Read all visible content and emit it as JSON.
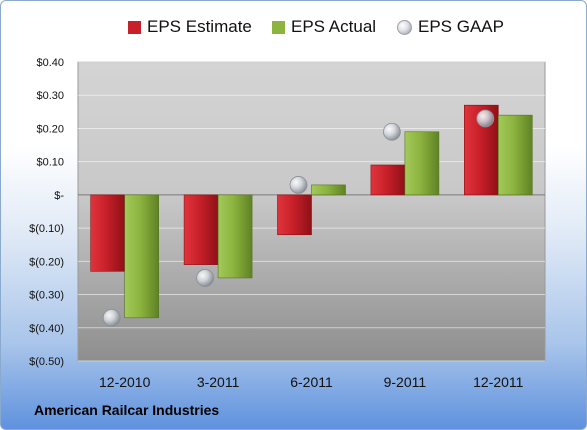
{
  "company_label": "American Railcar Industries",
  "chart_data": {
    "type": "bar",
    "categories": [
      "12-2010",
      "3-2011",
      "6-2011",
      "9-2011",
      "12-2011"
    ],
    "series": [
      {
        "name": "EPS Estimate",
        "kind": "bar",
        "color": "#c8202a",
        "values": [
          -0.23,
          -0.21,
          -0.12,
          0.09,
          0.27
        ]
      },
      {
        "name": "EPS Actual",
        "kind": "bar",
        "color": "#8cb43f",
        "values": [
          -0.37,
          -0.25,
          0.03,
          0.19,
          0.24
        ]
      },
      {
        "name": "EPS GAAP",
        "kind": "marker",
        "color": "#c9ccd1",
        "values": [
          -0.37,
          -0.25,
          0.03,
          0.19,
          0.23
        ]
      }
    ],
    "ylim": [
      -0.5,
      0.4
    ],
    "y_ticks": [
      0.4,
      0.3,
      0.2,
      0.1,
      0,
      -0.1,
      -0.2,
      -0.3,
      -0.4,
      -0.5
    ],
    "y_tick_labels": [
      "$0.40",
      "$0.30",
      "$0.20",
      "$0.10",
      "$-",
      "$(0.10)",
      "$(0.20)",
      "$(0.30)",
      "$(0.40)",
      "$(0.50)"
    ],
    "grid": true,
    "legend_position": "top"
  }
}
